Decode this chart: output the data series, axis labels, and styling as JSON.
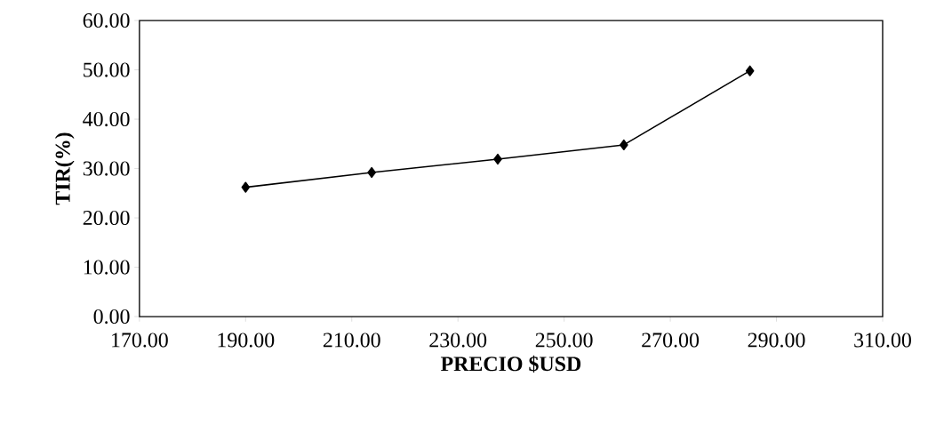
{
  "chart_data": {
    "type": "line",
    "xlabel": "PRECIO $USD",
    "ylabel": "TIR(%)",
    "x": [
      190,
      213.75,
      237.5,
      261.25,
      285
    ],
    "series": [
      {
        "color": "#000000",
        "values": [
          26.2,
          29.2,
          31.9,
          34.8,
          49.8
        ]
      }
    ],
    "xlim": [
      170,
      310
    ],
    "xticks": [
      {
        "value": 170,
        "label": "170.00"
      },
      {
        "value": 190,
        "label": "190.00"
      },
      {
        "value": 210,
        "label": "210.00"
      },
      {
        "value": 230,
        "label": "230.00"
      },
      {
        "value": 250,
        "label": "250.00"
      },
      {
        "value": 270,
        "label": "270.00"
      },
      {
        "value": 290,
        "label": "290.00"
      },
      {
        "value": 310,
        "label": "310.00"
      }
    ],
    "ylim": [
      0,
      60
    ],
    "yticks": [
      {
        "value": 0,
        "label": "0.00"
      },
      {
        "value": 10,
        "label": "10.00"
      },
      {
        "value": 20,
        "label": "20.00"
      },
      {
        "value": 30,
        "label": "30.00"
      },
      {
        "value": 40,
        "label": "40.00"
      },
      {
        "value": 50,
        "label": "50.00"
      },
      {
        "value": 60,
        "label": "60.00"
      }
    ],
    "marker": "diamond",
    "line_style": "solid"
  }
}
